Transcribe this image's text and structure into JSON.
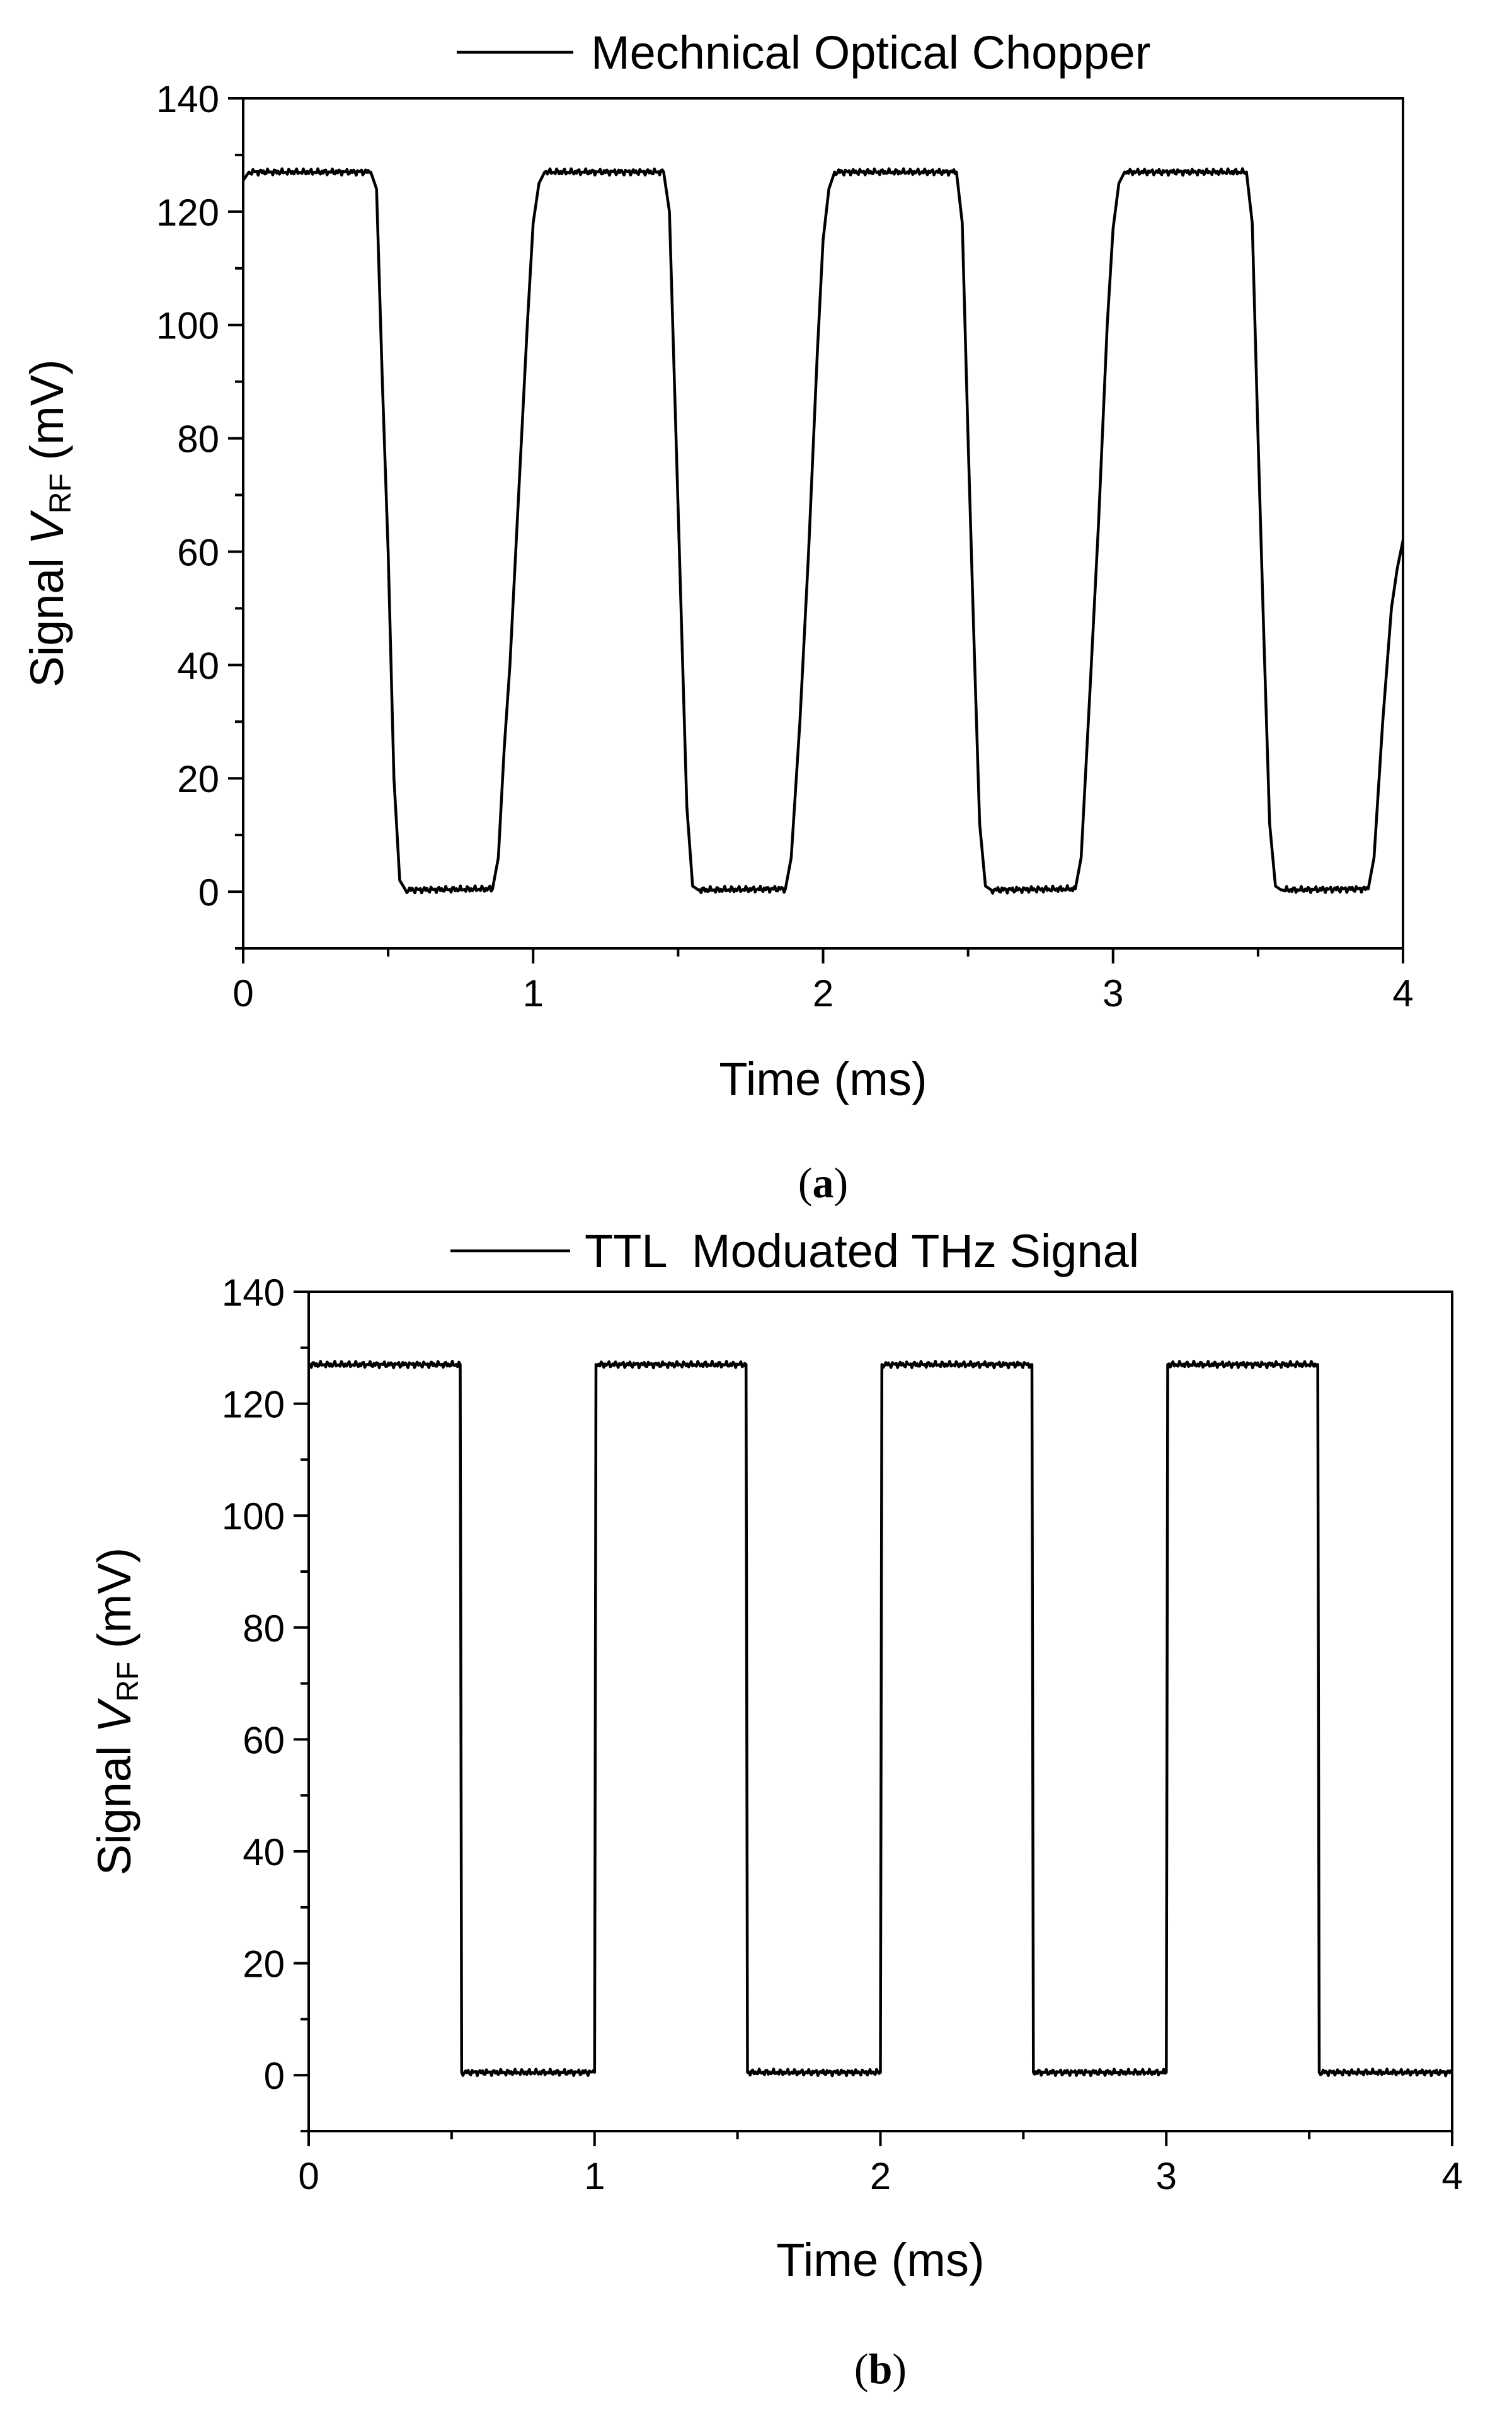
{
  "chart_data": [
    {
      "type": "line",
      "panel_label_open": "(",
      "panel_label_letter": "a",
      "panel_label_close": ")",
      "xlabel": "Time (ms)",
      "ylabel_prefix": "Signal ",
      "ylabel_var": "V",
      "ylabel_sub": "RF",
      "ylabel_suffix": " (mV)",
      "xlim": [
        0,
        4
      ],
      "ylim": [
        -10,
        140
      ],
      "xticks": [
        0,
        1,
        2,
        3,
        4
      ],
      "yticks": [
        0,
        20,
        40,
        60,
        80,
        100,
        120,
        140
      ],
      "legend_location": "top",
      "series": [
        {
          "name": "Mechnical Optical Chopper",
          "color": "#000000",
          "points": [
            [
              0.0,
              125.5
            ],
            [
              0.02,
              127.0
            ],
            [
              0.44,
              127.0
            ],
            [
              0.46,
              124.0
            ],
            [
              0.48,
              90.0
            ],
            [
              0.5,
              60.0
            ],
            [
              0.52,
              20.0
            ],
            [
              0.54,
              2.0
            ],
            [
              0.56,
              0.3
            ],
            [
              0.86,
              0.5
            ],
            [
              0.88,
              6.0
            ],
            [
              0.9,
              25.0
            ],
            [
              0.92,
              40.0
            ],
            [
              0.94,
              60.0
            ],
            [
              0.96,
              80.0
            ],
            [
              0.98,
              100.0
            ],
            [
              1.0,
              118.0
            ],
            [
              1.02,
              125.0
            ],
            [
              1.04,
              127.0
            ],
            [
              1.45,
              127.0
            ],
            [
              1.47,
              120.0
            ],
            [
              1.49,
              85.0
            ],
            [
              1.51,
              50.0
            ],
            [
              1.53,
              15.0
            ],
            [
              1.55,
              1.0
            ],
            [
              1.57,
              0.3
            ],
            [
              1.87,
              0.5
            ],
            [
              1.89,
              6.0
            ],
            [
              1.92,
              30.0
            ],
            [
              1.95,
              60.0
            ],
            [
              1.98,
              95.0
            ],
            [
              2.0,
              115.0
            ],
            [
              2.02,
              124.0
            ],
            [
              2.04,
              127.0
            ],
            [
              2.46,
              127.0
            ],
            [
              2.48,
              118.0
            ],
            [
              2.5,
              80.0
            ],
            [
              2.52,
              45.0
            ],
            [
              2.54,
              12.0
            ],
            [
              2.56,
              1.0
            ],
            [
              2.58,
              0.3
            ],
            [
              2.87,
              0.5
            ],
            [
              2.89,
              6.0
            ],
            [
              2.92,
              35.0
            ],
            [
              2.95,
              65.0
            ],
            [
              2.98,
              100.0
            ],
            [
              3.0,
              117.0
            ],
            [
              3.02,
              125.0
            ],
            [
              3.04,
              127.0
            ],
            [
              3.46,
              127.0
            ],
            [
              3.48,
              118.0
            ],
            [
              3.5,
              80.0
            ],
            [
              3.52,
              45.0
            ],
            [
              3.54,
              12.0
            ],
            [
              3.56,
              1.0
            ],
            [
              3.58,
              0.3
            ],
            [
              3.88,
              0.5
            ],
            [
              3.9,
              6.0
            ],
            [
              3.93,
              30.0
            ],
            [
              3.96,
              50.0
            ],
            [
              3.98,
              57.0
            ],
            [
              4.0,
              62.0
            ]
          ]
        }
      ]
    },
    {
      "type": "line",
      "panel_label_open": "(",
      "panel_label_letter": "b",
      "panel_label_close": ")",
      "xlabel": "Time (ms)",
      "ylabel_prefix": "Signal ",
      "ylabel_var": "V",
      "ylabel_sub": "RF",
      "ylabel_suffix": " (mV)",
      "xlim": [
        0,
        4
      ],
      "ylim": [
        -10,
        140
      ],
      "xticks": [
        0,
        1,
        2,
        3,
        4
      ],
      "yticks": [
        0,
        20,
        40,
        60,
        80,
        100,
        120,
        140
      ],
      "legend_location": "top",
      "series": [
        {
          "name": "TTL  Moduated THz Signal",
          "color": "#000000",
          "points": [
            [
              0.0,
              127.0
            ],
            [
              0.53,
              127.0
            ],
            [
              0.535,
              0.5
            ],
            [
              1.0,
              0.5
            ],
            [
              1.005,
              127.0
            ],
            [
              1.53,
              127.0
            ],
            [
              1.535,
              0.5
            ],
            [
              2.0,
              0.5
            ],
            [
              2.005,
              127.0
            ],
            [
              2.53,
              127.0
            ],
            [
              2.535,
              0.5
            ],
            [
              3.0,
              0.5
            ],
            [
              3.005,
              127.0
            ],
            [
              3.53,
              127.0
            ],
            [
              3.535,
              0.5
            ],
            [
              4.0,
              0.5
            ]
          ]
        }
      ]
    }
  ]
}
